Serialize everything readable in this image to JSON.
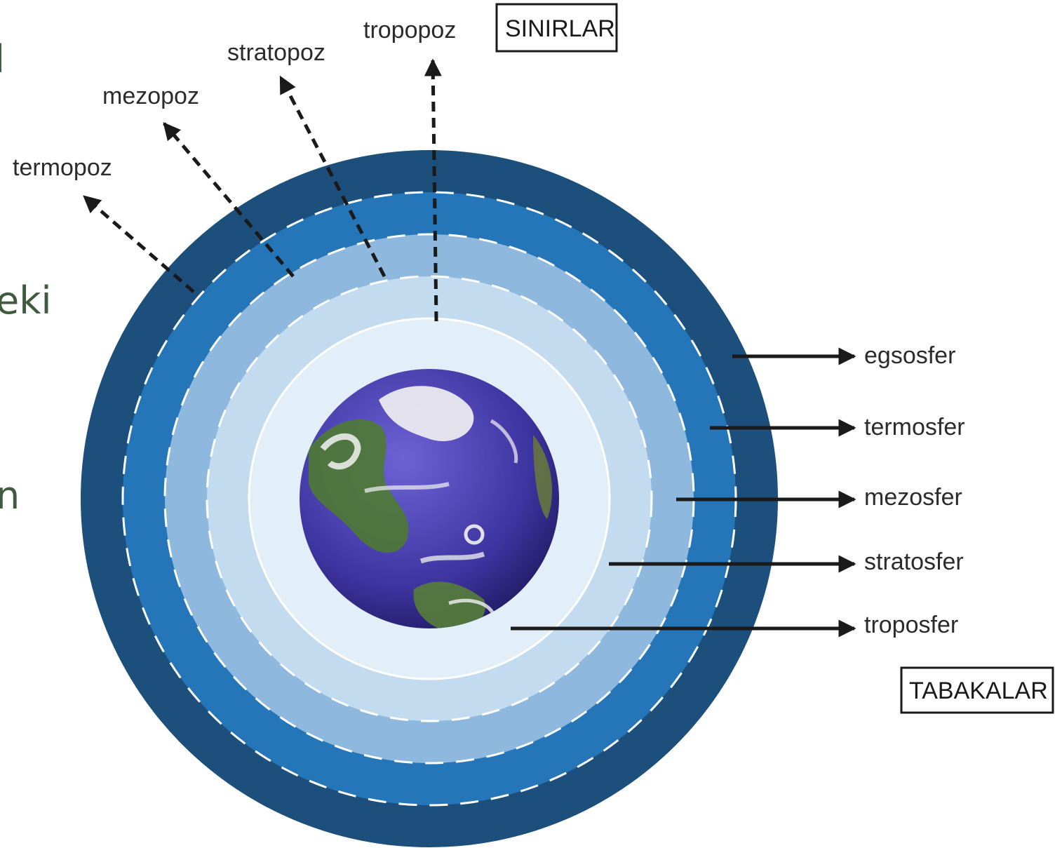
{
  "slide_fragments": [
    "l",
    "eki",
    "n"
  ],
  "boundaries_heading": "SINIRLAR",
  "layers_heading": "TABAKALAR",
  "boundaries": [
    {
      "id": "tropopoz",
      "label": "tropopoz"
    },
    {
      "id": "stratopoz",
      "label": "stratopoz"
    },
    {
      "id": "mezopoz",
      "label": "mezopoz"
    },
    {
      "id": "termopoz",
      "label": "termopoz"
    }
  ],
  "layers": [
    {
      "id": "egsosfer",
      "label": "egsosfer",
      "color": "#1c4f7c"
    },
    {
      "id": "termosfer",
      "label": "termosfer",
      "color": "#2476b8"
    },
    {
      "id": "mezosfer",
      "label": "mezosfer",
      "color": "#8fb8de"
    },
    {
      "id": "stratosfer",
      "label": "stratosfer",
      "color": "#c3dbef"
    },
    {
      "id": "troposfer",
      "label": "troposfer",
      "color": "#e2eef8"
    }
  ],
  "colors": {
    "earth_ocean": "#4a3fa8",
    "earth_land": "#4f7a34",
    "clouds": "#f2f2f2",
    "arrow": "#1a1a1a"
  },
  "icons": [
    "earth-icon"
  ]
}
